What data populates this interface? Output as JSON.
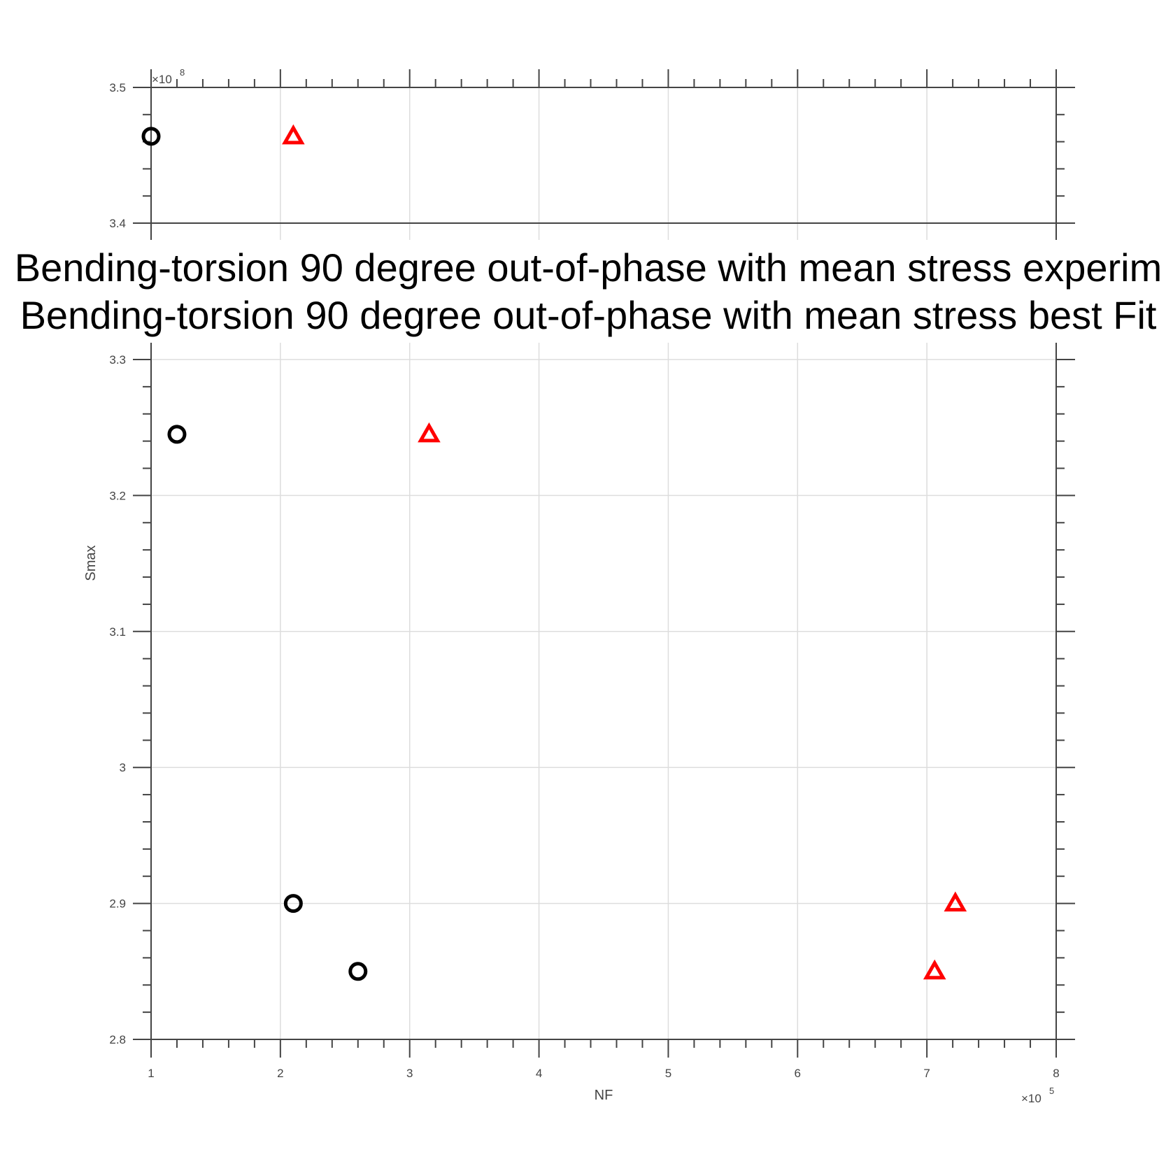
{
  "chart_data": {
    "type": "scatter",
    "xlabel": "NF",
    "ylabel": "Smax",
    "x_exponent": "5",
    "y_exponent": "8",
    "exponent_prefix": "×10",
    "xlim": [
      1,
      8
    ],
    "ylim": [
      2.8,
      3.5
    ],
    "y_break": [
      3.31,
      3.39
    ],
    "xticks": [
      "1",
      "2",
      "3",
      "4",
      "5",
      "6",
      "7",
      "8"
    ],
    "yticks": [
      "2.8",
      "2.9",
      "3",
      "3.1",
      "3.2",
      "3.3",
      "3.4",
      "3.5"
    ],
    "grid": true,
    "legend": {
      "placement": "center",
      "entries": [
        "Bending-torsion 90 degree out-of-phase with mean stress experim",
        "Bending-torsion 90 degree out-of-phase with mean stress best Fit"
      ]
    },
    "series": [
      {
        "marker": "circle",
        "color": "#000000",
        "points": [
          [
            1.0,
            3.464
          ],
          [
            1.2,
            3.245
          ],
          [
            2.1,
            2.9
          ],
          [
            2.6,
            2.85
          ]
        ]
      },
      {
        "marker": "triangle",
        "color": "#ff0000",
        "points": [
          [
            2.1,
            3.464
          ],
          [
            3.15,
            3.245
          ],
          [
            7.22,
            2.9
          ],
          [
            7.06,
            2.85
          ]
        ]
      }
    ]
  }
}
